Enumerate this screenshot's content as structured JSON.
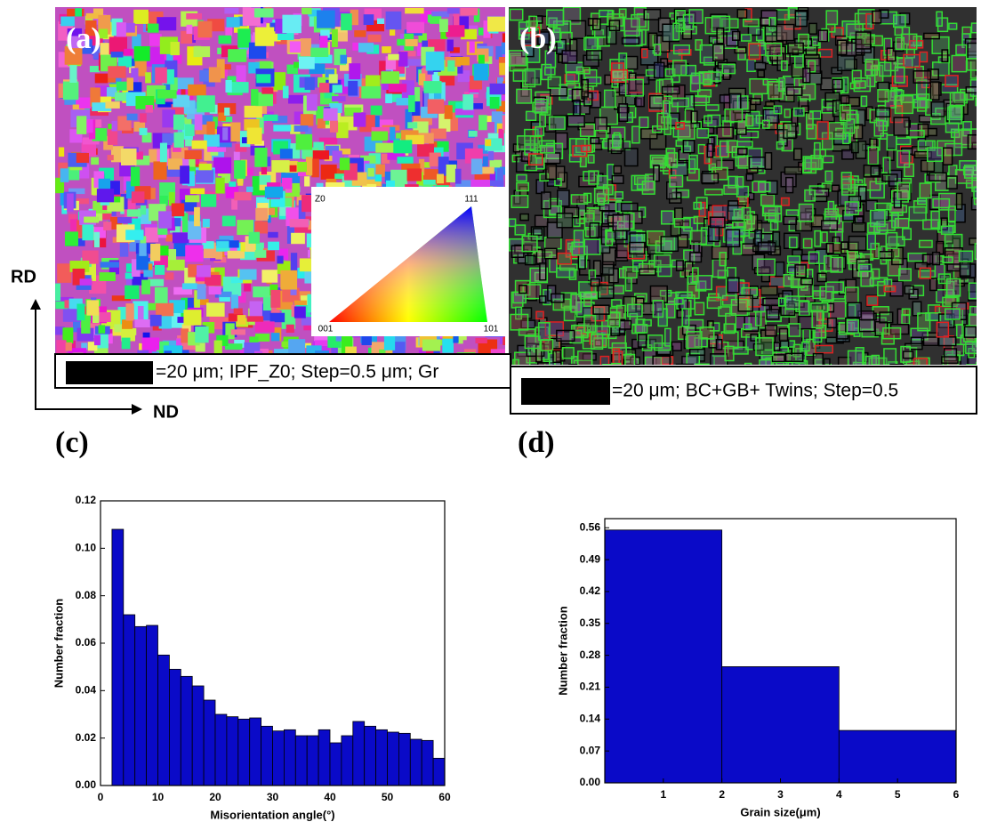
{
  "panels": {
    "a": "(a)",
    "b": "(b)",
    "c": "(c)",
    "d": "(d)"
  },
  "axes_labels": {
    "rd": "RD",
    "nd": "ND"
  },
  "captions": {
    "a": "=20 μm; IPF_Z0; Step=0.5 μm; Gr",
    "b": "=20 μm; BC+GB+ Twins; Step=0.5"
  },
  "ipf_legend": {
    "title": "Z0",
    "corner_top": "111",
    "corner_left": "001",
    "corner_right": "101"
  },
  "chart_data": [
    {
      "type": "histogram",
      "xlabel": "Misorientation angle(°)",
      "ylabel": "Number fraction",
      "color": "#0a0ac8",
      "bins": [
        2,
        4,
        6,
        8,
        10,
        12,
        14,
        16,
        18,
        20,
        22,
        24,
        26,
        28,
        30,
        32,
        34,
        36,
        38,
        40,
        42,
        44,
        46,
        48,
        50,
        52,
        54,
        56,
        58,
        60
      ],
      "values": [
        0.108,
        0.072,
        0.067,
        0.0675,
        0.055,
        0.049,
        0.046,
        0.042,
        0.036,
        0.03,
        0.029,
        0.028,
        0.0285,
        0.025,
        0.023,
        0.0235,
        0.021,
        0.021,
        0.0235,
        0.018,
        0.021,
        0.027,
        0.025,
        0.0235,
        0.0225,
        0.022,
        0.0195,
        0.019,
        0.0115
      ],
      "xlim": [
        0,
        60
      ],
      "xticks": [
        0,
        10,
        20,
        30,
        40,
        50,
        60
      ],
      "ylim": [
        0,
        0.12
      ],
      "yticks": [
        {
          "value": 0,
          "label": "0.00"
        },
        0.02,
        0.04,
        0.06,
        0.08,
        {
          "value": 0.1,
          "label": "0.10"
        },
        0.12
      ]
    },
    {
      "type": "histogram",
      "xlabel": "Grain size(μm)",
      "ylabel": "Number fraction",
      "color": "#0a0ac8",
      "bins": [
        0,
        2,
        4,
        6
      ],
      "values": [
        0.555,
        0.255,
        0.115
      ],
      "xlim": [
        0,
        6
      ],
      "xticks": [
        1,
        2,
        3,
        4,
        5,
        6
      ],
      "ylim": [
        0,
        0.58
      ],
      "yticks": [
        {
          "value": 0,
          "label": "0.00"
        },
        0.07,
        0.14,
        0.21,
        0.28,
        0.35,
        0.42,
        0.49,
        0.56
      ]
    }
  ]
}
